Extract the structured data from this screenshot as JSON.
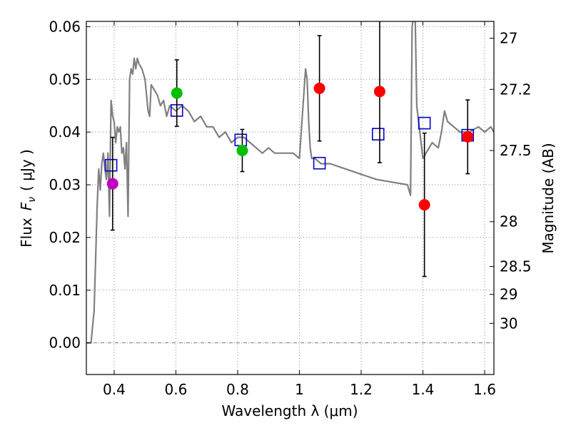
{
  "chart_data": {
    "type": "scatter",
    "xlabel": "Wavelength  λ (μm)",
    "ylabel_parts": {
      "flux": "Flux",
      "var": "F",
      "sub": "ν",
      "unit": "( μJy )"
    },
    "right_ylabel": "Magnitude (AB)",
    "xlim": [
      0.31,
      1.63
    ],
    "ylim": [
      -0.006,
      0.061
    ],
    "x_ticks": [
      "0.4",
      "0.6",
      "0.8",
      "1",
      "1.2",
      "1.4",
      "1.6"
    ],
    "x_tick_values": [
      0.4,
      0.6,
      0.8,
      1.0,
      1.2,
      1.4,
      1.6
    ],
    "y_ticks": [
      "0.00",
      "0.01",
      "0.02",
      "0.03",
      "0.04",
      "0.05",
      "0.06"
    ],
    "y_tick_values": [
      0.0,
      0.01,
      0.02,
      0.03,
      0.04,
      0.05,
      0.06
    ],
    "mag_ticks": [
      {
        "label": "27",
        "flux": 0.0578
      },
      {
        "label": "27.2",
        "flux": 0.0481
      },
      {
        "label": "27.5",
        "flux": 0.0365
      },
      {
        "label": "28",
        "flux": 0.023
      },
      {
        "label": "28.5",
        "flux": 0.0145
      },
      {
        "label": "29",
        "flux": 0.0092
      },
      {
        "label": "30",
        "flux": 0.0037
      }
    ],
    "grid": true,
    "observed": [
      {
        "x": 0.395,
        "y": 0.0302,
        "err": 0.0088,
        "color": "#bf00bf"
      },
      {
        "x": 0.603,
        "y": 0.0474,
        "err": 0.0063,
        "color": "#00bf00"
      },
      {
        "x": 0.815,
        "y": 0.0365,
        "err": 0.004,
        "color": "#00bf00"
      },
      {
        "x": 1.065,
        "y": 0.0483,
        "err": 0.01,
        "color": "#ff0000"
      },
      {
        "x": 1.26,
        "y": 0.0477,
        "err": 0.0135,
        "color": "#ff0000"
      },
      {
        "x": 1.405,
        "y": 0.0262,
        "err": 0.0136,
        "color": "#ff0000"
      },
      {
        "x": 1.545,
        "y": 0.0391,
        "err": 0.007,
        "color": "#ff0000"
      }
    ],
    "model_photometry": {
      "color": "#0000cc",
      "x": [
        0.39,
        0.603,
        0.81,
        1.065,
        1.255,
        1.405,
        1.545
      ],
      "y": [
        0.0337,
        0.0441,
        0.0385,
        0.0341,
        0.0396,
        0.0417,
        0.0394
      ]
    },
    "sed_model": {
      "color": "#808080",
      "x": [
        0.31,
        0.325,
        0.335,
        0.34,
        0.345,
        0.35,
        0.355,
        0.36,
        0.365,
        0.37,
        0.375,
        0.38,
        0.385,
        0.39,
        0.392,
        0.395,
        0.4,
        0.405,
        0.41,
        0.415,
        0.42,
        0.425,
        0.43,
        0.435,
        0.44,
        0.445,
        0.45,
        0.455,
        0.46,
        0.465,
        0.47,
        0.475,
        0.48,
        0.49,
        0.5,
        0.51,
        0.515,
        0.52,
        0.53,
        0.54,
        0.55,
        0.56,
        0.57,
        0.58,
        0.6,
        0.62,
        0.64,
        0.66,
        0.68,
        0.7,
        0.72,
        0.74,
        0.76,
        0.78,
        0.8,
        0.82,
        0.84,
        0.86,
        0.88,
        0.9,
        0.92,
        0.95,
        0.98,
        1.0,
        1.02,
        1.025,
        1.03,
        1.035,
        1.04,
        1.05,
        1.07,
        1.1,
        1.15,
        1.2,
        1.25,
        1.3,
        1.35,
        1.36,
        1.365,
        1.37,
        1.375,
        1.38,
        1.39,
        1.4,
        1.41,
        1.43,
        1.45,
        1.46,
        1.47,
        1.48,
        1.5,
        1.52,
        1.55,
        1.58,
        1.6,
        1.62,
        1.63
      ],
      "y": [
        0.0,
        0.0,
        0.006,
        0.016,
        0.026,
        0.033,
        0.029,
        0.034,
        0.036,
        0.033,
        0.031,
        0.036,
        0.024,
        0.046,
        0.045,
        0.043,
        0.042,
        0.038,
        0.041,
        0.04,
        0.041,
        0.036,
        0.037,
        0.033,
        0.038,
        0.024,
        0.05,
        0.052,
        0.051,
        0.054,
        0.052,
        0.054,
        0.053,
        0.052,
        0.05,
        0.044,
        0.043,
        0.049,
        0.048,
        0.047,
        0.045,
        0.046,
        0.043,
        0.045,
        0.044,
        0.045,
        0.044,
        0.042,
        0.043,
        0.041,
        0.041,
        0.039,
        0.04,
        0.038,
        0.039,
        0.039,
        0.038,
        0.037,
        0.036,
        0.037,
        0.036,
        0.036,
        0.036,
        0.035,
        0.052,
        0.05,
        0.042,
        0.037,
        0.035,
        0.035,
        0.034,
        0.034,
        0.033,
        0.032,
        0.031,
        0.0305,
        0.03,
        0.028,
        0.06,
        0.062,
        0.062,
        0.045,
        0.04,
        0.035,
        0.036,
        0.038,
        0.037,
        0.04,
        0.044,
        0.042,
        0.041,
        0.04,
        0.04,
        0.041,
        0.04,
        0.041,
        0.04
      ]
    }
  }
}
